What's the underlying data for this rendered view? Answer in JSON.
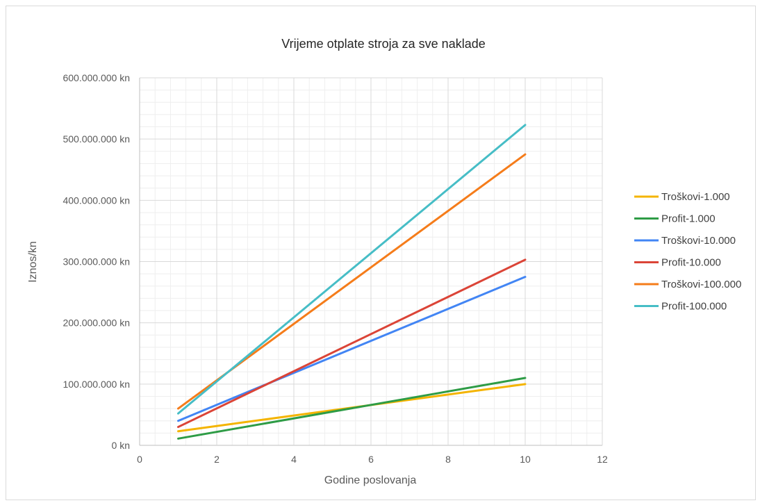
{
  "chart_data": {
    "type": "line",
    "title": "Vrijeme otplate stroja za sve naklade",
    "xlabel": "Godine poslovanja",
    "ylabel": "Iznos/kn",
    "xlim": [
      0,
      12
    ],
    "ylim": [
      0,
      600000000
    ],
    "x_ticks": [
      "0",
      "2",
      "4",
      "6",
      "8",
      "10",
      "12"
    ],
    "y_ticks": [
      "0 kn",
      "100.000.000 kn",
      "200.000.000 kn",
      "300.000.000 kn",
      "400.000.000 kn",
      "500.000.000 kn",
      "600.000.000 kn"
    ],
    "grid": true,
    "legend_position": "right",
    "series": [
      {
        "name": "Troškovi-1.000",
        "color": "#f4b400",
        "x": [
          1,
          10
        ],
        "y": [
          23000000,
          100000000
        ]
      },
      {
        "name": "Profit-1.000",
        "color": "#2e9c46",
        "x": [
          1,
          10
        ],
        "y": [
          11000000,
          110000000
        ]
      },
      {
        "name": "Troškovi-10.000",
        "color": "#4285f4",
        "x": [
          1,
          10
        ],
        "y": [
          40000000,
          275000000
        ]
      },
      {
        "name": "Profit-10.000",
        "color": "#db4437",
        "x": [
          1,
          10
        ],
        "y": [
          30000000,
          303000000
        ]
      },
      {
        "name": "Troškovi-100.000",
        "color": "#f57c1a",
        "x": [
          1,
          10
        ],
        "y": [
          60000000,
          475000000
        ]
      },
      {
        "name": "Profit-100.000",
        "color": "#46bdc6",
        "x": [
          1,
          10
        ],
        "y": [
          52000000,
          523000000
        ]
      }
    ]
  }
}
